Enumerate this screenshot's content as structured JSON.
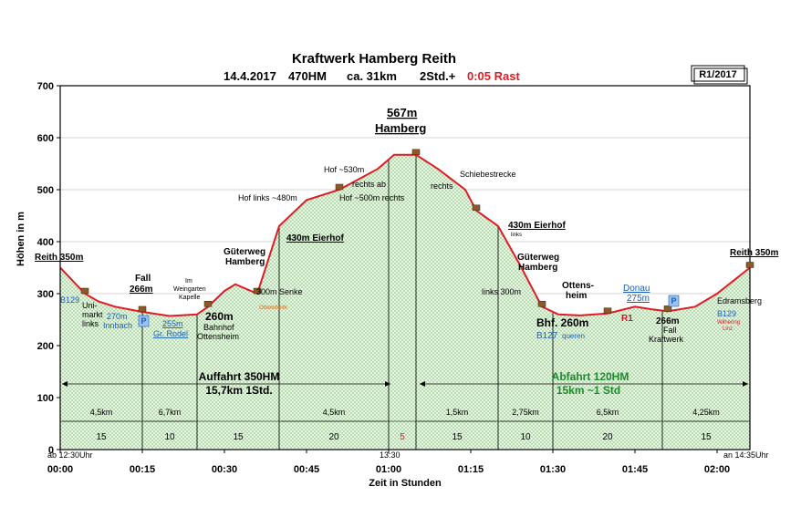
{
  "header": {
    "title": "Kraftwerk Hamberg Reith",
    "date": "14.4.2017",
    "hm": "470HM",
    "distance": "ca. 31km",
    "duration": "2Std.+",
    "rest": "0:05 Rast",
    "badge": "R1/2017"
  },
  "chart_data": {
    "type": "area",
    "ylabel": "Höhen in m",
    "xlabel": "Zeit in Stunden",
    "ylim": [
      0,
      700
    ],
    "yticks": [
      0,
      100,
      200,
      300,
      400,
      500,
      600,
      700
    ],
    "xlim_minutes": [
      0,
      126
    ],
    "xticks": [
      "00:00",
      "00:15",
      "00:30",
      "00:45",
      "01:00",
      "01:15",
      "01:30",
      "01:45",
      "02:00"
    ],
    "grid": true,
    "profile": [
      {
        "t": 0,
        "h": 350
      },
      {
        "t": 4.5,
        "h": 300
      },
      {
        "t": 7,
        "h": 285
      },
      {
        "t": 10,
        "h": 275
      },
      {
        "t": 15,
        "h": 265
      },
      {
        "t": 20,
        "h": 257
      },
      {
        "t": 25,
        "h": 260
      },
      {
        "t": 27,
        "h": 275
      },
      {
        "t": 30,
        "h": 305
      },
      {
        "t": 32,
        "h": 318
      },
      {
        "t": 36,
        "h": 300
      },
      {
        "t": 40,
        "h": 430
      },
      {
        "t": 45,
        "h": 480
      },
      {
        "t": 51,
        "h": 500
      },
      {
        "t": 58,
        "h": 540
      },
      {
        "t": 61,
        "h": 567
      },
      {
        "t": 65,
        "h": 567
      },
      {
        "t": 69,
        "h": 540
      },
      {
        "t": 74,
        "h": 500
      },
      {
        "t": 76,
        "h": 460
      },
      {
        "t": 80,
        "h": 430
      },
      {
        "t": 84,
        "h": 355
      },
      {
        "t": 88,
        "h": 275
      },
      {
        "t": 91,
        "h": 260
      },
      {
        "t": 95,
        "h": 258
      },
      {
        "t": 100,
        "h": 262
      },
      {
        "t": 105,
        "h": 275
      },
      {
        "t": 108,
        "h": 270
      },
      {
        "t": 111,
        "h": 266
      },
      {
        "t": 116,
        "h": 275
      },
      {
        "t": 120,
        "h": 300
      },
      {
        "t": 126,
        "h": 350
      }
    ],
    "vlines_minutes": [
      15,
      25,
      40,
      60,
      65,
      80,
      90,
      110
    ],
    "segment_distances": [
      {
        "from": 0,
        "to": 15,
        "label": "4,5km"
      },
      {
        "from": 15,
        "to": 25,
        "label": "6,7km"
      },
      {
        "from": 40,
        "to": 60,
        "label": "4,5km"
      },
      {
        "from": 65,
        "to": 80,
        "label": "1,5km"
      },
      {
        "from": 80,
        "to": 90,
        "label": "2,75km"
      },
      {
        "from": 90,
        "to": 110,
        "label": "6,5km"
      },
      {
        "from": 110,
        "to": 126,
        "label": "4,25km"
      }
    ],
    "segment_minutes": [
      {
        "from": 0,
        "to": 15,
        "label": "15"
      },
      {
        "from": 15,
        "to": 25,
        "label": "10"
      },
      {
        "from": 25,
        "to": 40,
        "label": "15"
      },
      {
        "from": 40,
        "to": 60,
        "label": "20"
      },
      {
        "from": 60,
        "to": 65,
        "label": "5"
      },
      {
        "from": 65,
        "to": 80,
        "label": "15"
      },
      {
        "from": 80,
        "to": 90,
        "label": "10"
      },
      {
        "from": 90,
        "to": 110,
        "label": "20"
      },
      {
        "from": 110,
        "to": 126,
        "label": "15"
      }
    ],
    "start_label": "ab 12:30Uhr",
    "end_label": "an 14:35Uhr",
    "rest_time": "13:30",
    "ascent": {
      "line1": "Auffahrt  350HM",
      "line2": "15,7km   1Std."
    },
    "descent": {
      "line1": "Abfahrt 120HM",
      "line2": "15km    ~1 Std"
    },
    "annotations": {
      "reith_start": "Reith 350m",
      "reith_end": "Reith 350m",
      "b129_start": "B129",
      "unimarkt_1": "Uni-",
      "unimarkt_2": "markt",
      "unimarkt_3": "links",
      "innbach_1": "270m",
      "innbach_2": "Innbach",
      "fall_1": "Fall",
      "fall_2": "266m",
      "rodel_1": "255m",
      "rodel_2": "Gr. Rodel",
      "weing_1": "Im",
      "weing_2": "Weingarten",
      "weing_3": "Kapelle",
      "bahnhof_1": "260m",
      "bahnhof_2": "Bahnhof",
      "bahnhof_3": "Ottensheim",
      "gueterweg1_1": "Güterweg",
      "gueterweg1_2": "Hamberg",
      "senke": "300m Senke",
      "ottensheim_small": "Ottensheim",
      "eierhof1": "430m Eierhof",
      "hof480": "Hof links ~480m",
      "hof530": "Hof ~530m",
      "rechts_ab": "rechts ab",
      "hof500": "Hof ~500m rechts",
      "summit_1": "567m",
      "summit_2": "Hamberg",
      "schiebe": "Schiebestrecke",
      "rechts": "rechts",
      "eierhof2": "430m Eierhof",
      "eierhof2_links": "links",
      "gueterweg2_1": "Güterweg",
      "gueterweg2_2": "Hamberg",
      "links300": "links  300m",
      "bhf": "Bhf. 260m",
      "b127": "B127",
      "queren": "queren",
      "ottens_1": "Ottens-",
      "ottens_2": "heim",
      "donau_1": "Donau",
      "donau_2": "275m",
      "r1": "R1",
      "fall2_1": "266m",
      "fall2_2": "Fall",
      "fall2_3": "Kraftwerk",
      "edramsberg": "Edramsberg",
      "b129_end": "B129",
      "wilhering": "Wilhering",
      "linz": "Linz",
      "p_sign": "P"
    }
  }
}
